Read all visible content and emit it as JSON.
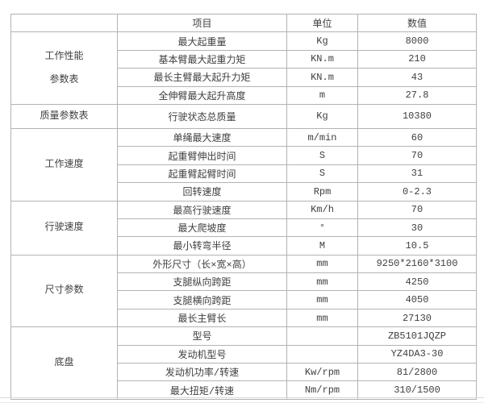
{
  "colors": {
    "border": "#b3b3b3",
    "text": "#3f3f3f",
    "background": "#ffffff",
    "footer_line": "#d9d9d9"
  },
  "table": {
    "headers": {
      "category": "",
      "item": "项目",
      "unit": "单位",
      "value": "数值"
    },
    "groups": [
      {
        "category": "工作性能参数表",
        "category_lines": [
          "工作性能",
          "参数表"
        ],
        "rows": [
          {
            "item": "最大起重量",
            "unit": "Kg",
            "value": "8000"
          },
          {
            "item": "基本臂最大起重力矩",
            "unit": "KN.m",
            "value": "210"
          },
          {
            "item": "最长主臂最大起升力矩",
            "unit": "KN.m",
            "value": "43"
          },
          {
            "item": "全伸臂最大起升高度",
            "unit": "m",
            "value": "27.8"
          }
        ]
      },
      {
        "category": "质量参数表",
        "category_lines": [
          "质量参数表"
        ],
        "rows": [
          {
            "item": "行驶状态总质量",
            "unit": "Kg",
            "value": "10380"
          }
        ]
      },
      {
        "category": "工作速度",
        "category_lines": [
          "工作速度"
        ],
        "rows": [
          {
            "item": "单绳最大速度",
            "unit": "m/min",
            "value": "60"
          },
          {
            "item": "起重臂伸出时间",
            "unit": "S",
            "value": "70"
          },
          {
            "item": "起重臂起臂时间",
            "unit": "S",
            "value": "31"
          },
          {
            "item": "回转速度",
            "unit": "Rpm",
            "value": "0-2.3"
          }
        ]
      },
      {
        "category": "行驶速度",
        "category_lines": [
          "行驶速度"
        ],
        "rows": [
          {
            "item": "最高行驶速度",
            "unit": "Km/h",
            "value": "70"
          },
          {
            "item": "最大爬坡度",
            "unit": "°",
            "value": "30"
          },
          {
            "item": "最小转弯半径",
            "unit": "M",
            "value": "10.5"
          }
        ]
      },
      {
        "category": "尺寸参数",
        "category_lines": [
          "尺寸参数"
        ],
        "rows": [
          {
            "item": "外形尺寸（长×宽×高）",
            "unit": "mm",
            "value": "9250*2160*3100"
          },
          {
            "item": "支腿纵向跨距",
            "unit": "mm",
            "value": "4250"
          },
          {
            "item": "支腿横向跨距",
            "unit": "mm",
            "value": "4050"
          },
          {
            "item": "最长主臂长",
            "unit": "mm",
            "value": "27130"
          }
        ]
      },
      {
        "category": "底盘",
        "category_lines": [
          "底盘"
        ],
        "rows": [
          {
            "item": "型号",
            "unit": "",
            "value": "ZB5101JQZP"
          },
          {
            "item": "发动机型号",
            "unit": "",
            "value": "YZ4DA3-30"
          },
          {
            "item": "发动机功率/转速",
            "unit": "Kw/rpm",
            "value": "81/2800"
          },
          {
            "item": "最大扭矩/转速",
            "unit": "Nm/rpm",
            "value": "310/1500"
          }
        ]
      }
    ]
  },
  "chart_data": {
    "type": "table",
    "columns": [
      "",
      "项目",
      "单位",
      "数值"
    ],
    "rows": [
      [
        "工作性能参数表",
        "最大起重量",
        "Kg",
        "8000"
      ],
      [
        "工作性能参数表",
        "基本臂最大起重力矩",
        "KN.m",
        "210"
      ],
      [
        "工作性能参数表",
        "最长主臂最大起升力矩",
        "KN.m",
        "43"
      ],
      [
        "工作性能参数表",
        "全伸臂最大起升高度",
        "m",
        "27.8"
      ],
      [
        "质量参数表",
        "行驶状态总质量",
        "Kg",
        "10380"
      ],
      [
        "工作速度",
        "单绳最大速度",
        "m/min",
        "60"
      ],
      [
        "工作速度",
        "起重臂伸出时间",
        "S",
        "70"
      ],
      [
        "工作速度",
        "起重臂起臂时间",
        "S",
        "31"
      ],
      [
        "工作速度",
        "回转速度",
        "Rpm",
        "0-2.3"
      ],
      [
        "行驶速度",
        "最高行驶速度",
        "Km/h",
        "70"
      ],
      [
        "行驶速度",
        "最大爬坡度",
        "°",
        "30"
      ],
      [
        "行驶速度",
        "最小转弯半径",
        "M",
        "10.5"
      ],
      [
        "尺寸参数",
        "外形尺寸（长×宽×高）",
        "mm",
        "9250*2160*3100"
      ],
      [
        "尺寸参数",
        "支腿纵向跨距",
        "mm",
        "4250"
      ],
      [
        "尺寸参数",
        "支腿横向跨距",
        "mm",
        "4050"
      ],
      [
        "尺寸参数",
        "最长主臂长",
        "mm",
        "27130"
      ],
      [
        "底盘",
        "型号",
        "",
        "ZB5101JQZP"
      ],
      [
        "底盘",
        "发动机型号",
        "",
        "YZ4DA3-30"
      ],
      [
        "底盘",
        "发动机功率/转速",
        "Kw/rpm",
        "81/2800"
      ],
      [
        "底盘",
        "最大扭矩/转速",
        "Nm/rpm",
        "310/1500"
      ]
    ]
  }
}
